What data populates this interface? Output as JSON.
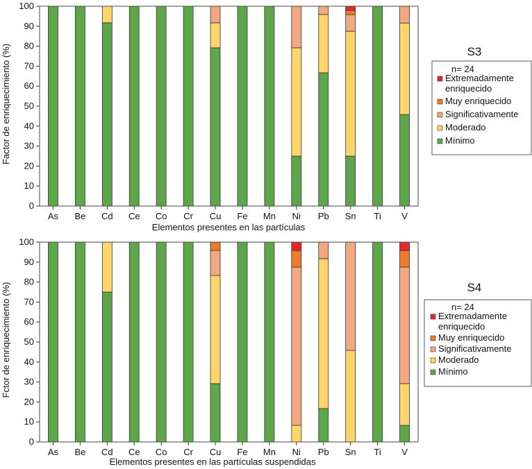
{
  "colors": {
    "extremo": "#e8262b",
    "muy": "#ee7a2c",
    "significativo": "#f2a880",
    "moderado": "#fdd56a",
    "minimo": "#5ea64a",
    "bar_stroke": "#333333"
  },
  "chart_data": [
    {
      "type": "bar",
      "stacked": true,
      "title": "S3",
      "ylabel": "Factor de enriquecimiento (%)",
      "xlabel": "Elementos presentes en las partículas",
      "ylim": [
        0,
        100
      ],
      "yticks": [
        0,
        10,
        20,
        30,
        40,
        50,
        60,
        70,
        80,
        90,
        100
      ],
      "grid": false,
      "legend": {
        "placement": "right",
        "note": "n= 24"
      },
      "categories": [
        "As",
        "Be",
        "Cd",
        "Ce",
        "Co",
        "Cr",
        "Cu",
        "Fe",
        "Mn",
        "Ni",
        "Pb",
        "Sn",
        "Ti",
        "V"
      ],
      "series": [
        {
          "name": "Mínimo",
          "color": "#5ea64a",
          "values": [
            100,
            100,
            91.7,
            100,
            100,
            100,
            79.2,
            100,
            100,
            25,
            66.7,
            25,
            100,
            45.8
          ]
        },
        {
          "name": "Moderado",
          "color": "#fdd56a",
          "values": [
            0,
            0,
            8.3,
            0,
            0,
            0,
            12.5,
            0,
            0,
            54.2,
            29.2,
            62.5,
            0,
            45.8
          ]
        },
        {
          "name": "Significativamente",
          "color": "#f2a880",
          "values": [
            0,
            0,
            0,
            0,
            0,
            0,
            8.3,
            0,
            0,
            20.8,
            4.1,
            8.3,
            0,
            8.4
          ]
        },
        {
          "name": "Muy enriquecido",
          "color": "#ee7a2c",
          "values": [
            0,
            0,
            0,
            0,
            0,
            0,
            0,
            0,
            0,
            0,
            0,
            2.1,
            0,
            0
          ]
        },
        {
          "name": "Extremadamente enriquecido",
          "color": "#e8262b",
          "values": [
            0,
            0,
            0,
            0,
            0,
            0,
            0,
            0,
            0,
            0,
            0,
            2.1,
            0,
            0
          ]
        }
      ],
      "legend_order": [
        {
          "name": "Extremadamente",
          "name2": "enriquecido",
          "color": "#e8262b"
        },
        {
          "name": "Muy enriquecido",
          "color": "#ee7a2c"
        },
        {
          "name": "Significativamente",
          "color": "#f2a880"
        },
        {
          "name": "Moderado",
          "color": "#fdd56a"
        },
        {
          "name": "Mínimo",
          "color": "#5ea64a"
        }
      ]
    },
    {
      "type": "bar",
      "stacked": true,
      "title": "S4",
      "ylabel": "Fctor de enriquecimiento (%)",
      "xlabel": "Elementos presentes en las partículas suspendidas",
      "ylim": [
        0,
        100
      ],
      "yticks": [
        0,
        10,
        20,
        30,
        40,
        50,
        60,
        70,
        80,
        90,
        100
      ],
      "grid": false,
      "legend": {
        "placement": "right",
        "note": "n= 24"
      },
      "categories": [
        "As",
        "Be",
        "Cd",
        "Ce",
        "Co",
        "Cr",
        "Cu",
        "Fe",
        "Mn",
        "Ni",
        "Pb",
        "Sn",
        "Ti",
        "V"
      ],
      "series": [
        {
          "name": "Mínimo",
          "color": "#5ea64a",
          "values": [
            100,
            100,
            75,
            100,
            100,
            100,
            29.2,
            100,
            100,
            0,
            16.7,
            0,
            100,
            8.3
          ]
        },
        {
          "name": "Moderado",
          "color": "#fdd56a",
          "values": [
            0,
            0,
            25,
            0,
            0,
            0,
            54.1,
            0,
            0,
            8.3,
            75,
            45.8,
            0,
            20.9
          ]
        },
        {
          "name": "Significativamente",
          "color": "#f2a880",
          "values": [
            0,
            0,
            0,
            0,
            0,
            0,
            12.5,
            0,
            0,
            79.2,
            8.3,
            54.2,
            0,
            58.3
          ]
        },
        {
          "name": "Muy enriquecido",
          "color": "#ee7a2c",
          "values": [
            0,
            0,
            0,
            0,
            0,
            0,
            4.2,
            0,
            0,
            8.3,
            0,
            0,
            0,
            8.3
          ]
        },
        {
          "name": "Extremadamente enriquecido",
          "color": "#e8262b",
          "values": [
            0,
            0,
            0,
            0,
            0,
            0,
            0,
            0,
            0,
            4.2,
            0,
            0,
            0,
            4.2
          ]
        }
      ],
      "legend_order": [
        {
          "name": "Extremadamente",
          "name2": "enriquecido",
          "color": "#e8262b"
        },
        {
          "name": "Muy enriquecido",
          "color": "#ee7a2c"
        },
        {
          "name": "Significativamente",
          "color": "#f2a880"
        },
        {
          "name": "Moderado",
          "color": "#fdd56a"
        },
        {
          "name": "Mínimo",
          "color": "#5ea64a"
        }
      ]
    }
  ]
}
